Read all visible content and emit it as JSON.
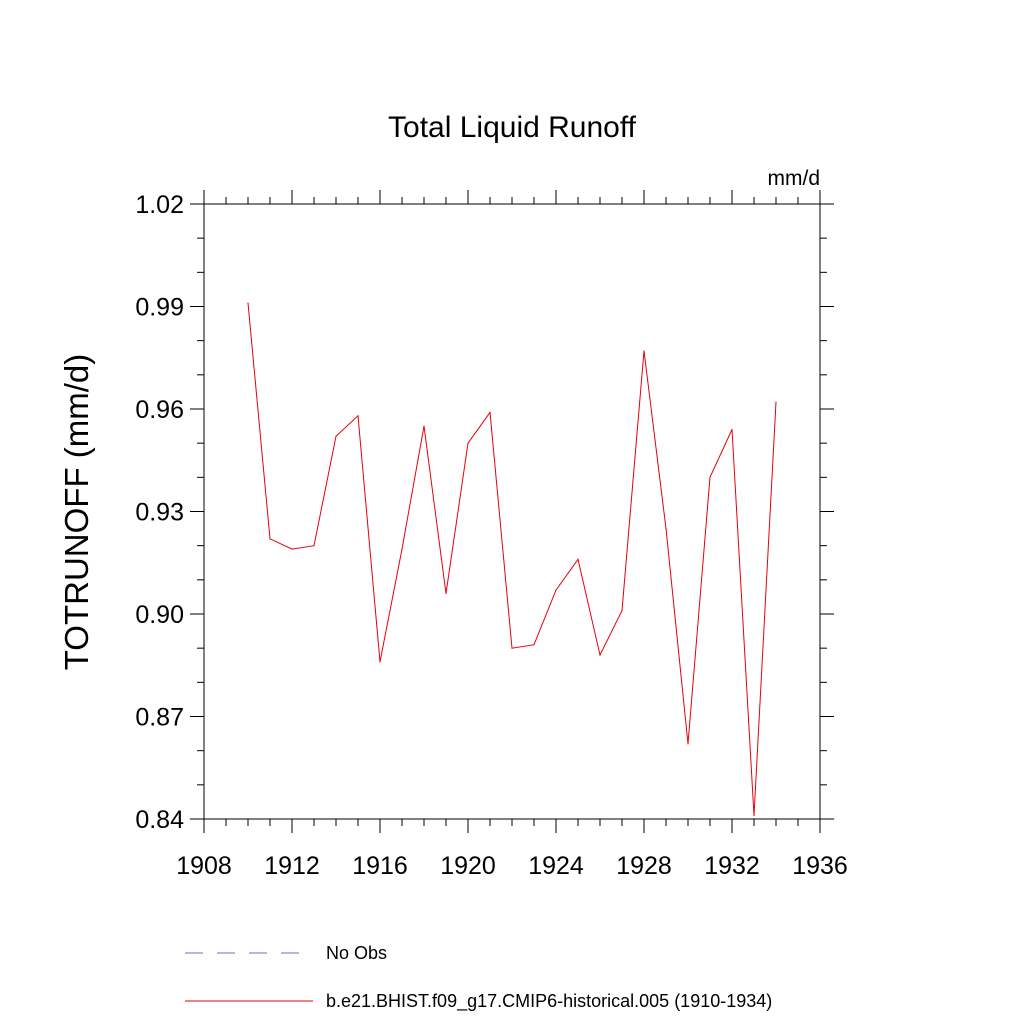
{
  "chart_data": {
    "type": "line",
    "title": "Total Liquid Runoff",
    "units_label": "mm/d",
    "ylabel": "TOTRUNOFF  (mm/d)",
    "xlabel": "",
    "xlim": [
      1908,
      1936
    ],
    "ylim": [
      0.84,
      1.02
    ],
    "x_ticks": [
      "1908",
      "1912",
      "1916",
      "1920",
      "1924",
      "1928",
      "1932",
      "1936"
    ],
    "y_ticks": [
      "0.84",
      "0.87",
      "0.90",
      "0.93",
      "0.96",
      "0.99",
      "1.02"
    ],
    "grid": false,
    "legend_position": "bottom",
    "colors": {
      "model": "#e8000b",
      "obs": "#6b6bd6"
    },
    "series": [
      {
        "name": "No Obs",
        "style": "dashed",
        "x": [],
        "values": []
      },
      {
        "name": "b.e21.BHIST.f09_g17.CMIP6-historical.005 (1910-1934)",
        "style": "solid",
        "x": [
          1910,
          1911,
          1912,
          1913,
          1914,
          1915,
          1916,
          1917,
          1918,
          1919,
          1920,
          1921,
          1922,
          1923,
          1924,
          1925,
          1926,
          1927,
          1928,
          1929,
          1930,
          1931,
          1932,
          1933,
          1934
        ],
        "values": [
          0.991,
          0.922,
          0.919,
          0.92,
          0.952,
          0.958,
          0.886,
          0.919,
          0.955,
          0.906,
          0.95,
          0.959,
          0.89,
          0.891,
          0.907,
          0.916,
          0.888,
          0.901,
          0.977,
          0.925,
          0.862,
          0.94,
          0.954,
          0.841,
          0.962
        ]
      }
    ]
  }
}
